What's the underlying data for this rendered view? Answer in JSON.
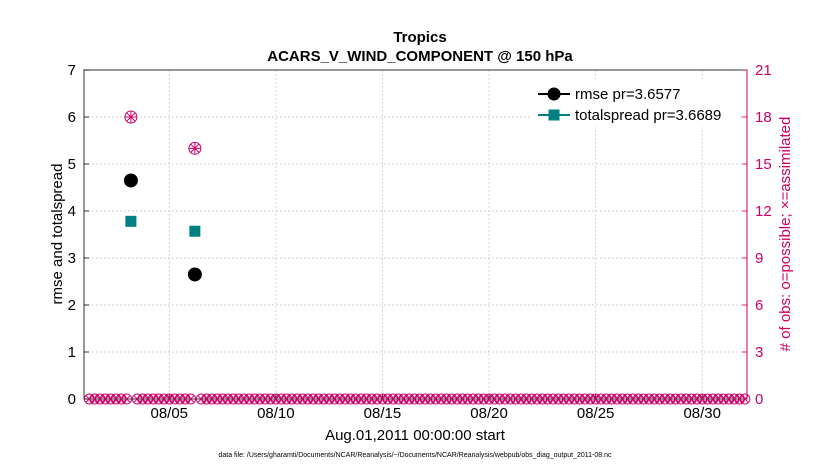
{
  "chart_data": {
    "type": "scatter",
    "title": "Tropics",
    "subtitle": "ACARS_V_WIND_COMPONENT @ 150 hPa",
    "xlabel": "Aug.01,2011 00:00:00 start",
    "ylabel_left": "rmse and totalspread",
    "ylabel_right": "# of obs: o=possible; ×=assimilated",
    "xlim": [
      1,
      32.1
    ],
    "ylim_left": [
      0,
      7
    ],
    "ylim_right": [
      0,
      21
    ],
    "grid": true,
    "legend_position": "top-right",
    "x_ticks": [
      {
        "value": 5,
        "label": "08/05"
      },
      {
        "value": 10,
        "label": "08/10"
      },
      {
        "value": 15,
        "label": "08/15"
      },
      {
        "value": 20,
        "label": "08/20"
      },
      {
        "value": 25,
        "label": "08/25"
      },
      {
        "value": 30,
        "label": "08/30"
      }
    ],
    "y_ticks_left": [
      "0",
      "1",
      "2",
      "3",
      "4",
      "5",
      "6",
      "7"
    ],
    "y_ticks_right": [
      "0",
      "3",
      "6",
      "9",
      "12",
      "15",
      "18",
      "21"
    ],
    "series": [
      {
        "name": "rmse pr=3.6577",
        "color": "#000000",
        "marker": "circle",
        "points": [
          [
            3.2,
            4.65
          ],
          [
            6.2,
            2.65
          ]
        ]
      },
      {
        "name": "totalspread pr=3.6689",
        "color": "#008080",
        "marker": "square",
        "points": [
          [
            3.2,
            3.78
          ],
          [
            6.2,
            3.57
          ]
        ]
      }
    ],
    "obs_possible": {
      "color": "#cc0066",
      "points": [
        [
          3.2,
          18
        ],
        [
          6.2,
          16
        ]
      ]
    },
    "obs_assimilated": {
      "color": "#cc0066",
      "points": [
        [
          3.2,
          18
        ],
        [
          6.2,
          16
        ]
      ]
    },
    "zero_count_x_start": 1.25,
    "zero_count_x_step": 0.25,
    "zero_count_x_end": 32.0
  },
  "footer": "data file: /Users/gharamti/Documents/NCAR/Reanalysis/~/Documents/NCAR/Reanalysis/webpub/obs_diag_output_2011-08.nc"
}
